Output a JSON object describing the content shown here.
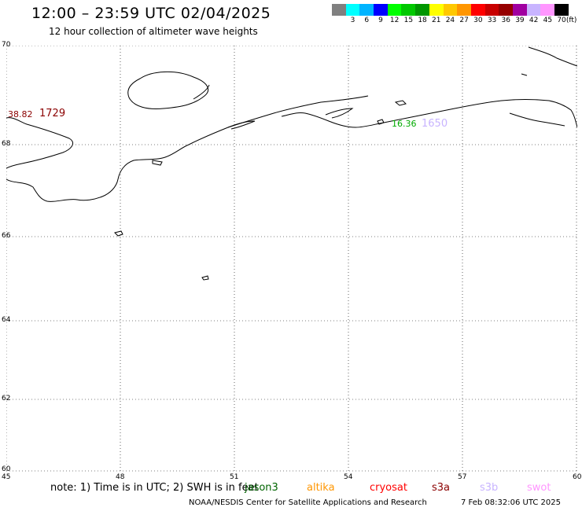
{
  "header": {
    "title": "12:00 – 23:59 UTC 02/04/2025",
    "subtitle": "12 hour collection of altimeter wave heights"
  },
  "scale": {
    "unit": "(ft)",
    "swatches": [
      {
        "color": "#808080",
        "label": ""
      },
      {
        "color": "#00ffff",
        "label": "3"
      },
      {
        "color": "#00b4ff",
        "label": "6"
      },
      {
        "color": "#0000ff",
        "label": "9"
      },
      {
        "color": "#00ff00",
        "label": "12"
      },
      {
        "color": "#00c800",
        "label": "15"
      },
      {
        "color": "#009600",
        "label": "18"
      },
      {
        "color": "#ffff00",
        "label": "21"
      },
      {
        "color": "#ffc800",
        "label": "24"
      },
      {
        "color": "#ff9600",
        "label": "27"
      },
      {
        "color": "#ff0000",
        "label": "30"
      },
      {
        "color": "#c80000",
        "label": "33"
      },
      {
        "color": "#960000",
        "label": "36"
      },
      {
        "color": "#a000a0",
        "label": "39"
      },
      {
        "color": "#c8b4ff",
        "label": "42"
      },
      {
        "color": "#ff96ff",
        "label": "45"
      },
      {
        "color": "#000000",
        "label": "70"
      }
    ]
  },
  "map": {
    "lat_labels": [
      "70",
      "68",
      "66",
      "64",
      "62",
      "60"
    ],
    "lon_labels": [
      "45",
      "48",
      "51",
      "54",
      "57",
      "60"
    ],
    "observations": [
      {
        "value": "38.82",
        "time": "1729",
        "value_color": "#8b0000",
        "time_color": "#8b0000"
      },
      {
        "value": "16.36",
        "time": "1650",
        "value_color": "#00aa00",
        "time_color": "#c8b4ff"
      }
    ]
  },
  "footer": {
    "note": "note: 1) Time is in UTC; 2) SWH is in feet",
    "satellites": [
      {
        "name": "jason3",
        "color": "#006400"
      },
      {
        "name": "altika",
        "color": "#ff9600"
      },
      {
        "name": "cryosat",
        "color": "#ff0000"
      },
      {
        "name": "s3a",
        "color": "#8b0000"
      },
      {
        "name": "s3b",
        "color": "#c8b4ff"
      },
      {
        "name": "swot",
        "color": "#ff96ff"
      }
    ],
    "credit": "NOAA/NESDIS Center for Satellite Applications and Research",
    "timestamp": "7 Feb 08:32:06 UTC 2025"
  }
}
